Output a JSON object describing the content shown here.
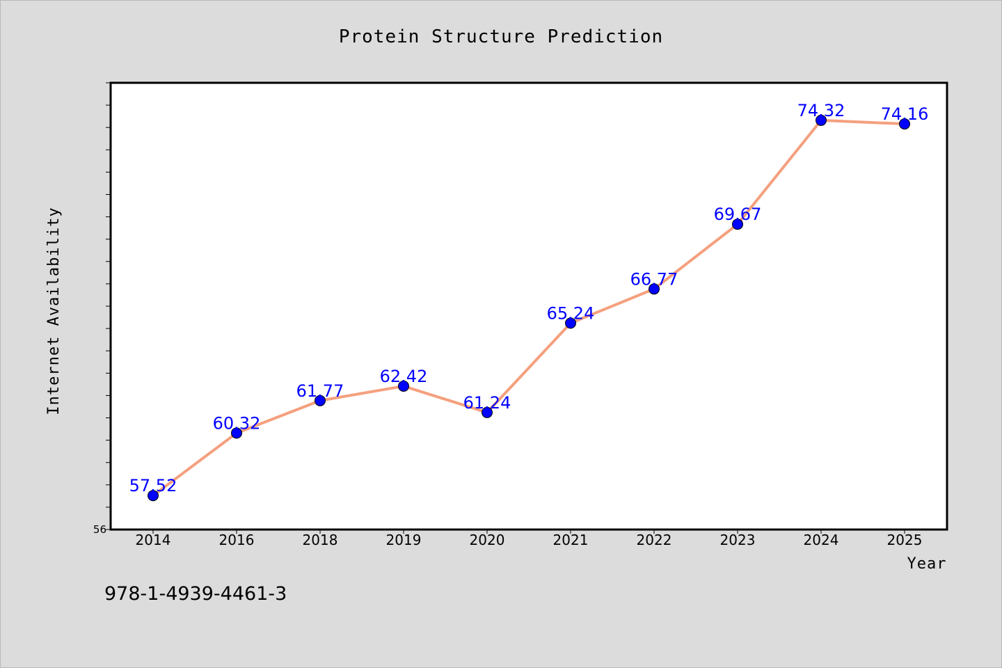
{
  "chart_data": {
    "type": "line",
    "title": "Protein Structure Prediction",
    "xlabel": "Year",
    "ylabel": "Internet Availability",
    "categories": [
      "2014",
      "2016",
      "2018",
      "2019",
      "2020",
      "2021",
      "2022",
      "2023",
      "2024",
      "2025"
    ],
    "series": [
      {
        "values": [
          57.52,
          60.32,
          61.77,
          62.42,
          61.24,
          65.24,
          66.77,
          69.67,
          74.32,
          74.16
        ],
        "labels": [
          "57.52",
          "60.32",
          "61.77",
          "62.42",
          "61.24",
          "65.24",
          "66.77",
          "69.67",
          "74.32",
          "74.16"
        ],
        "line_color": "#f4a07e",
        "marker_color": "#0000ff"
      }
    ],
    "ylim": [
      56,
      76
    ],
    "ytick_labels": [
      "56"
    ],
    "grid": false,
    "legend": false,
    "background": "#dcdcdc",
    "plot_background": "#ffffff"
  },
  "caption": "978-1-4939-4461-3"
}
